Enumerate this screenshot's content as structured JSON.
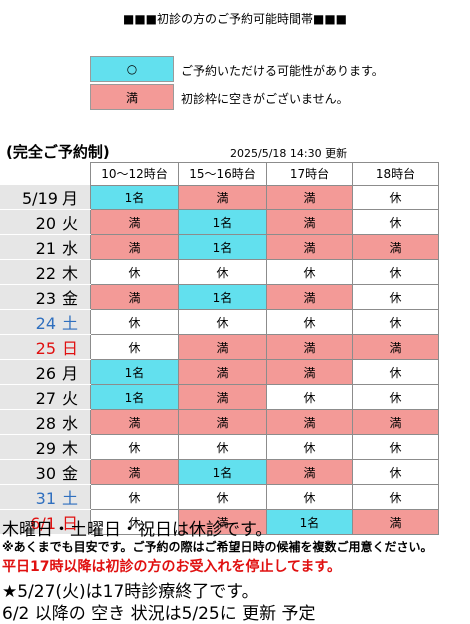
{
  "title": "■■■初診の方のご予約可能時間帯■■■",
  "legend": [
    {
      "mark": "○",
      "text": "ご予約いただける可能性があります。",
      "color": "#62e0ee"
    },
    {
      "mark": "満",
      "text": "初診枠に空きがございません。",
      "color": "#f39a97"
    }
  ],
  "booking_note": "(完全ご予約制)",
  "updated": "2025/5/18 14:30 更新",
  "columns": [
    "10～12時台",
    "15～16時台",
    "17時台",
    "18時台"
  ],
  "colors": {
    "available": "#62e0ee",
    "full": "#f39a97",
    "saturday": "#2f6fbf",
    "sunday": "#e01010"
  },
  "rows": [
    {
      "date": "5/19",
      "dow": "月",
      "day_type": "weekday",
      "cells": [
        "1名",
        "満",
        "満",
        "休"
      ]
    },
    {
      "date": "20",
      "dow": "火",
      "day_type": "weekday",
      "cells": [
        "満",
        "1名",
        "満",
        "休"
      ]
    },
    {
      "date": "21",
      "dow": "水",
      "day_type": "weekday",
      "cells": [
        "満",
        "1名",
        "満",
        "満"
      ]
    },
    {
      "date": "22",
      "dow": "木",
      "day_type": "weekday",
      "cells": [
        "休",
        "休",
        "休",
        "休"
      ]
    },
    {
      "date": "23",
      "dow": "金",
      "day_type": "weekday",
      "cells": [
        "満",
        "1名",
        "満",
        "休"
      ]
    },
    {
      "date": "24",
      "dow": "土",
      "day_type": "saturday",
      "cells": [
        "休",
        "休",
        "休",
        "休"
      ]
    },
    {
      "date": "25",
      "dow": "日",
      "day_type": "sunday",
      "cells": [
        "休",
        "満",
        "満",
        "満"
      ]
    },
    {
      "date": "26",
      "dow": "月",
      "day_type": "weekday",
      "cells": [
        "1名",
        "満",
        "満",
        "休"
      ]
    },
    {
      "date": "27",
      "dow": "火",
      "day_type": "weekday",
      "cells": [
        "1名",
        "満",
        "休",
        "休"
      ]
    },
    {
      "date": "28",
      "dow": "水",
      "day_type": "weekday",
      "cells": [
        "満",
        "満",
        "満",
        "満"
      ]
    },
    {
      "date": "29",
      "dow": "木",
      "day_type": "weekday",
      "cells": [
        "休",
        "休",
        "休",
        "休"
      ]
    },
    {
      "date": "30",
      "dow": "金",
      "day_type": "weekday",
      "cells": [
        "満",
        "1名",
        "満",
        "休"
      ]
    },
    {
      "date": "31",
      "dow": "土",
      "day_type": "saturday",
      "cells": [
        "休",
        "休",
        "休",
        "休"
      ]
    },
    {
      "date": "6/1",
      "dow": "日",
      "day_type": "sunday",
      "cells": [
        "休",
        "満",
        "1名",
        "満"
      ]
    }
  ],
  "notes": {
    "closed_days": "木曜日・土曜日・祝日は休診です。",
    "approx": "※あくまでも目安です。ご予約の際はご希望日時の候補を複数ご用意ください。",
    "weekday_after17": "平日17時以降は初診の方のお受入れを停止してます。",
    "star_note": "★5/27(火)は17時診療終了です。",
    "after_note": "6/2 以降の 空き 状況は5/25に 更新 予定"
  }
}
